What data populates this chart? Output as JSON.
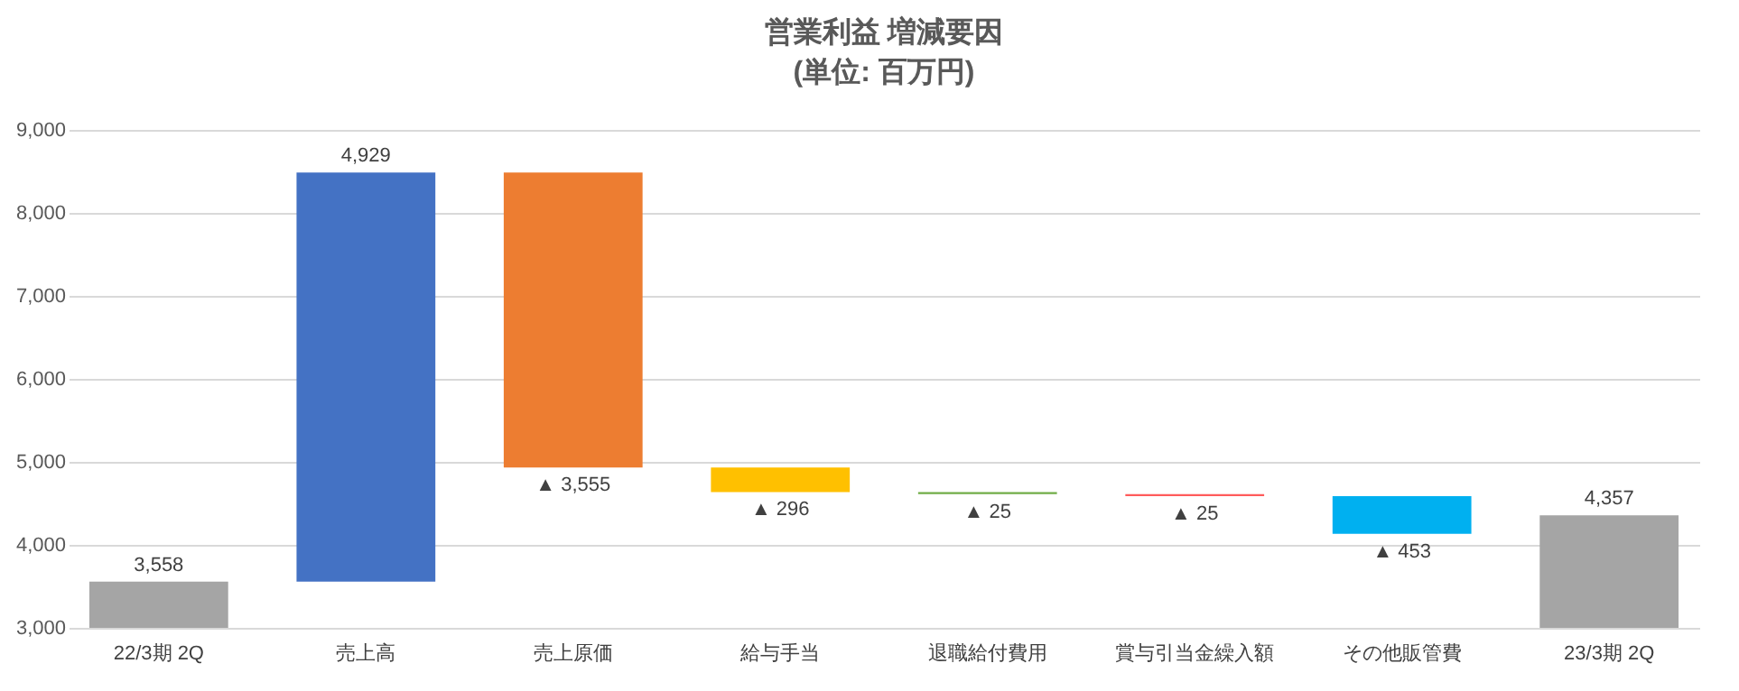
{
  "chart_data": {
    "type": "bar",
    "title": "営業利益 増減要因",
    "subtitle": "(単位: 百万円)",
    "categories": [
      "22/3期 2Q",
      "売上高",
      "売上原価",
      "給与手当",
      "退職給付費用",
      "賞与引当金繰入額",
      "その他販管費",
      "23/3期 2Q"
    ],
    "values": [
      3558,
      4929,
      -3555,
      -296,
      -25,
      -25,
      -453,
      4357
    ],
    "base": [
      null,
      3558,
      8487,
      4932,
      4636,
      4611,
      4586,
      null
    ],
    "colors": [
      "#a5a5a5",
      "#4472c4",
      "#ed7d31",
      "#ffc000",
      "#70ad47",
      "#ff5b5b",
      "#00b0f0",
      "#a5a5a5"
    ],
    "value_labels": [
      "3,558",
      "4,929",
      "▲ 3,555",
      "▲ 296",
      "▲ 25",
      "▲ 25",
      "▲ 453",
      "4,357"
    ],
    "ylim": [
      3000,
      9000
    ],
    "yticks": [
      {
        "value": 3000,
        "label": "3,000"
      },
      {
        "value": 4000,
        "label": "4,000"
      },
      {
        "value": 5000,
        "label": "5,000"
      },
      {
        "value": 6000,
        "label": "6,000"
      },
      {
        "value": 7000,
        "label": "7,000"
      },
      {
        "value": 8000,
        "label": "8,000"
      },
      {
        "value": 9000,
        "label": "9,000"
      }
    ],
    "grid": "y"
  }
}
